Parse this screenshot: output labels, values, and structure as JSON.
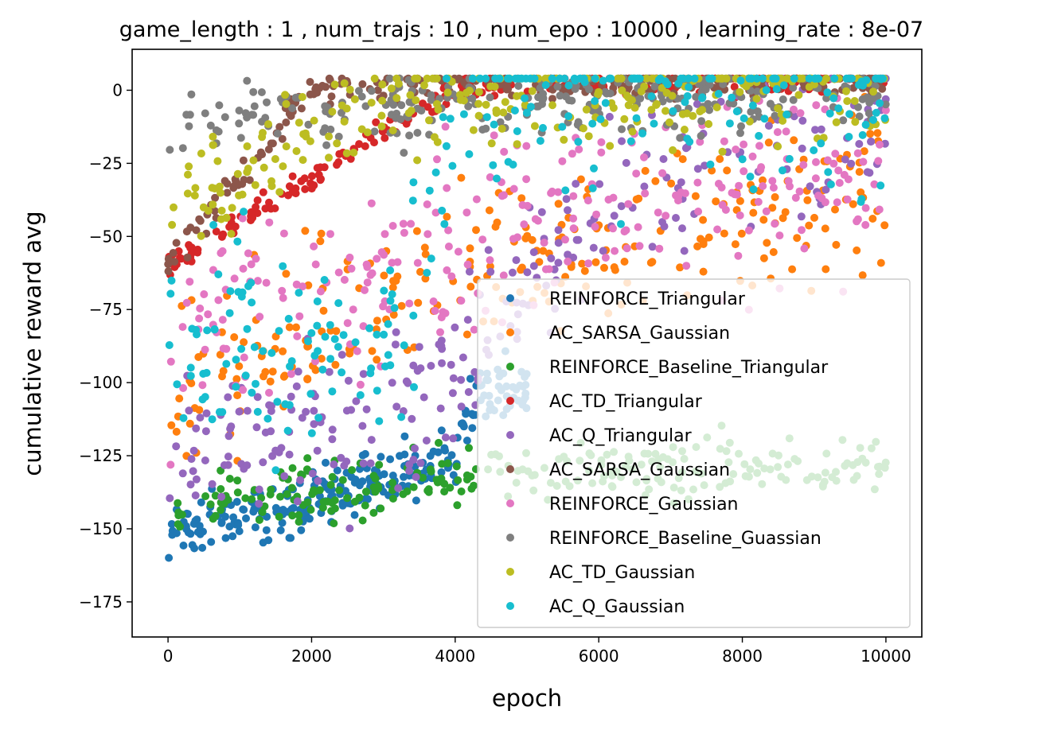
{
  "chart_data": {
    "type": "scatter",
    "title": "game_length : 1 , num_trajs : 10 , num_epo : 10000 , learning_rate : 8e-07",
    "xlabel": "epoch",
    "ylabel": "cumulative reward avg",
    "xlim": [
      -500,
      10500
    ],
    "ylim": [
      -187,
      14
    ],
    "xticks": [
      0,
      2000,
      4000,
      6000,
      8000,
      10000
    ],
    "xtick_labels": [
      "0",
      "2000",
      "4000",
      "6000",
      "8000",
      "10000"
    ],
    "yticks": [
      0,
      -25,
      -50,
      -75,
      -100,
      -125,
      -150,
      -175
    ],
    "ytick_labels": [
      "0",
      "−25",
      "−50",
      "−75",
      "−100",
      "−125",
      "−150",
      "−175"
    ],
    "grid": false,
    "legend_position": "center-right",
    "series": [
      {
        "name": "REINFORCE_Triangular",
        "color": "#1f77b4",
        "x": [
          0,
          2000,
          4000,
          4200,
          4400,
          4600,
          5000
        ],
        "y": [
          -153,
          -140,
          -125,
          -110,
          -103,
          -100,
          -103
        ]
      },
      {
        "name": "AC_SARSA_Gaussian",
        "color": "#ff7f0e",
        "x": [
          0,
          2000,
          4000,
          6000,
          8000,
          10000
        ],
        "y": [
          -110,
          -80,
          -60,
          -55,
          -40,
          -35
        ]
      },
      {
        "name": "REINFORCE_Baseline_Triangular",
        "color": "#2ca02c",
        "x": [
          0,
          1000,
          2000,
          3000,
          4000,
          6000,
          8000,
          10000
        ],
        "y": [
          -145,
          -140,
          -138,
          -135,
          -130,
          -130,
          -128,
          -128
        ]
      },
      {
        "name": "AC_TD_Triangular",
        "color": "#d62728",
        "x": [
          0,
          2000,
          4000,
          6000,
          8000,
          10000
        ],
        "y": [
          -60,
          -30,
          2,
          3,
          3,
          3
        ]
      },
      {
        "name": "AC_Q_Triangular",
        "color": "#9467bd",
        "x": [
          0,
          2000,
          4000,
          6000,
          8000,
          10000
        ],
        "y": [
          -130,
          -120,
          -100,
          -40,
          -20,
          -10
        ]
      },
      {
        "name": "AC_SARSA_Gaussian",
        "color": "#8c564b",
        "x": [
          0,
          2000,
          4000,
          6000,
          8000,
          10000
        ],
        "y": [
          -60,
          1,
          3,
          3,
          3,
          3
        ]
      },
      {
        "name": "REINFORCE_Gaussian",
        "color": "#e377c2",
        "x": [
          0,
          2000,
          4000,
          6000,
          8000,
          10000
        ],
        "y": [
          -90,
          -70,
          -55,
          -38,
          -32,
          -30
        ]
      },
      {
        "name": "REINFORCE_Baseline_Guassian",
        "color": "#7f7f7f",
        "x": [
          0,
          1000,
          2000,
          3000,
          4000,
          6000,
          8000,
          10000
        ],
        "y": [
          -12,
          -10,
          -8,
          -6,
          -4,
          -3,
          -2,
          -2
        ]
      },
      {
        "name": "AC_TD_Gaussian",
        "color": "#bcbd22",
        "x": [
          0,
          1000,
          2000,
          3000,
          4000,
          6000,
          8000,
          10000
        ],
        "y": [
          -40,
          -30,
          -15,
          -5,
          -1,
          0,
          0,
          0
        ]
      },
      {
        "name": "AC_Q_Gaussian",
        "color": "#17becf",
        "x": [
          0,
          1000,
          2000,
          3000,
          3500,
          4000,
          5000,
          6000,
          8000,
          10000
        ],
        "y": [
          -85,
          -88,
          -90,
          -85,
          -60,
          -5,
          -1,
          0,
          0,
          0
        ]
      }
    ]
  }
}
